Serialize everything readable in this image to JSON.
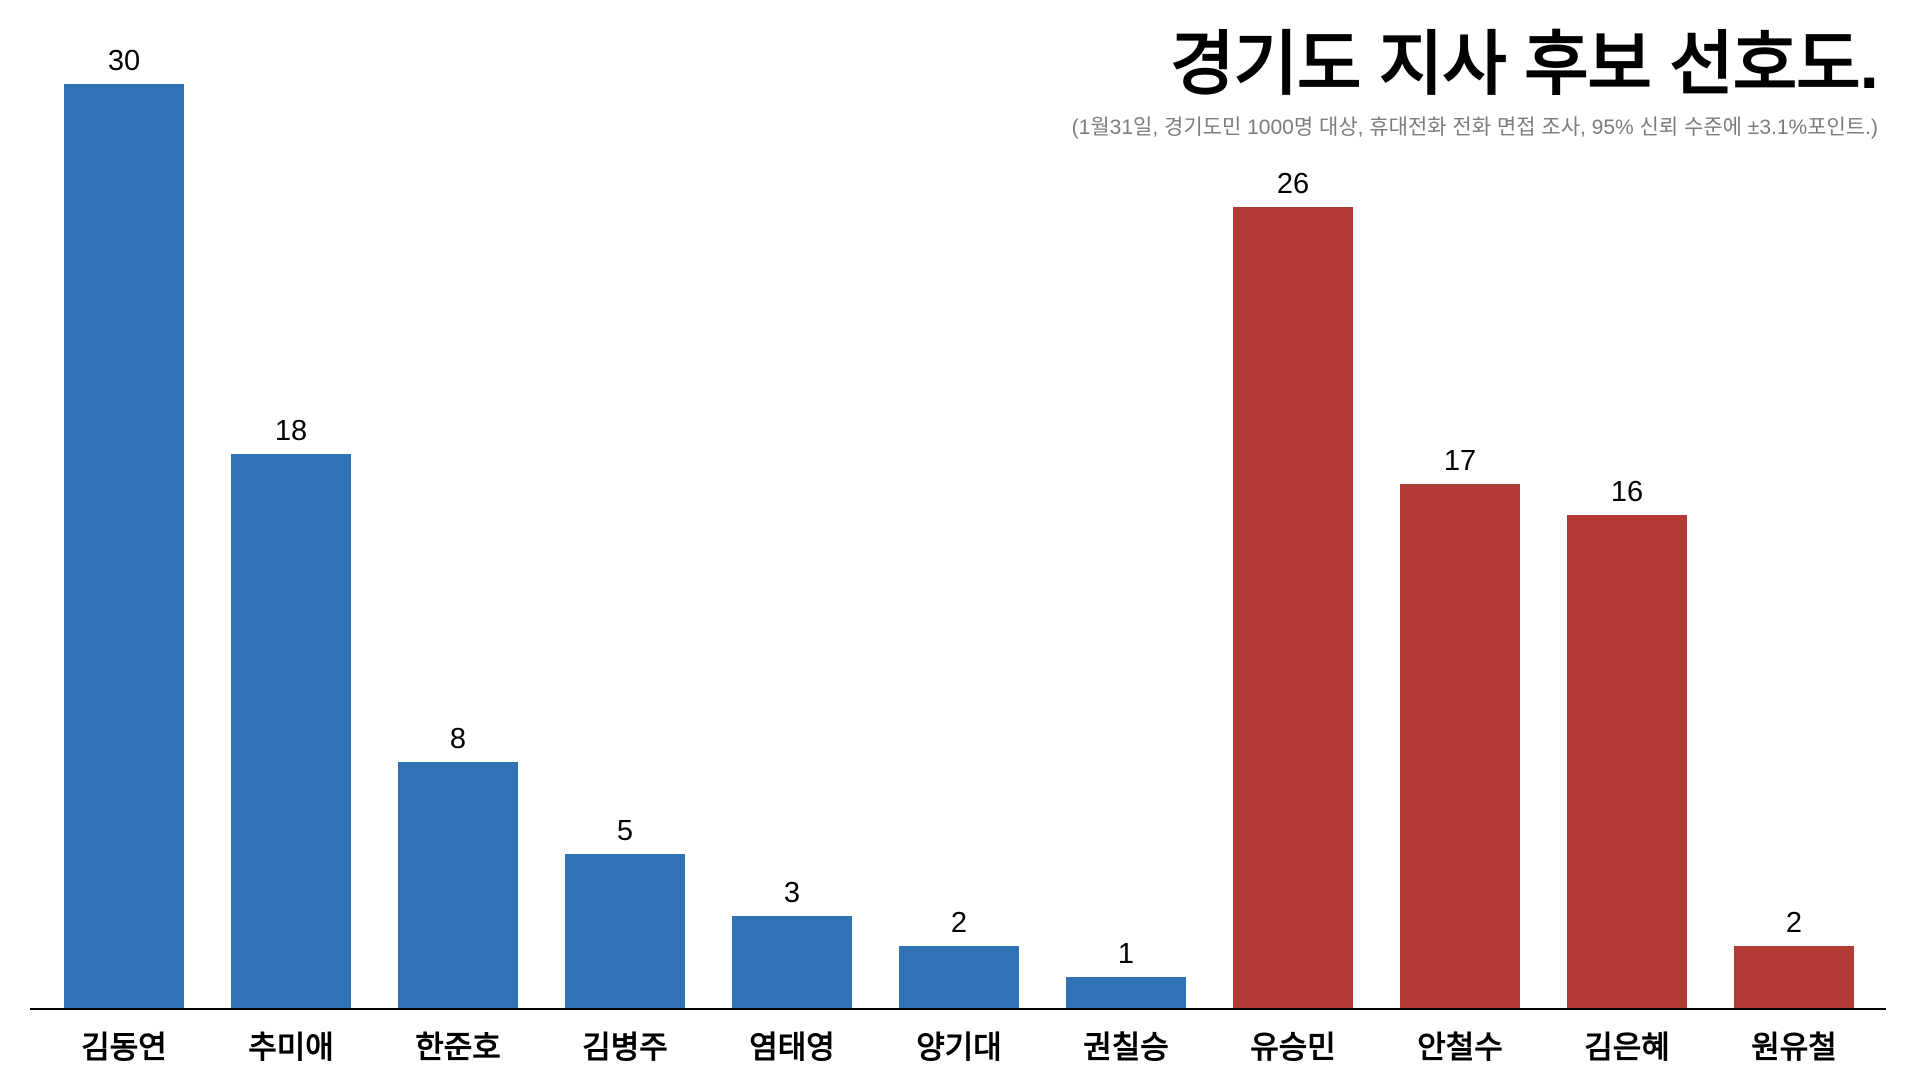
{
  "title": "경기도 지사 후보 선호도.",
  "subtitle": "(1월31일, 경기도민 1000명 대상, 휴대전화 전화 면접 조사, 95% 신뢰 수준에 ±3.1%포인트.)",
  "colors": {
    "blue": "#2F73B4",
    "red": "#B13B34",
    "axis": "#000000",
    "subtitle_gray": "#7D7D7D",
    "background": "#FFFFFF"
  },
  "chart_data": {
    "type": "bar",
    "title": "경기도 지사 후보 선호도.",
    "subtitle": "(1월31일, 경기도민 1000명 대상, 휴대전화 전화 면접 조사, 95% 신뢰 수준에 ±3.1%포인트.)",
    "categories": [
      "김동연",
      "추미애",
      "한준호",
      "김병주",
      "염태영",
      "양기대",
      "권칠승",
      "유승민",
      "안철수",
      "김은혜",
      "원유철"
    ],
    "values": [
      30,
      18,
      8,
      5,
      3,
      2,
      1,
      26,
      17,
      16,
      2
    ],
    "bar_colors": [
      "blue",
      "blue",
      "blue",
      "blue",
      "blue",
      "blue",
      "blue",
      "red",
      "red",
      "red",
      "red"
    ],
    "xlabel": "",
    "ylabel": "",
    "ylim": [
      0,
      32
    ],
    "grid": false,
    "legend": "none",
    "value_labels": true
  }
}
